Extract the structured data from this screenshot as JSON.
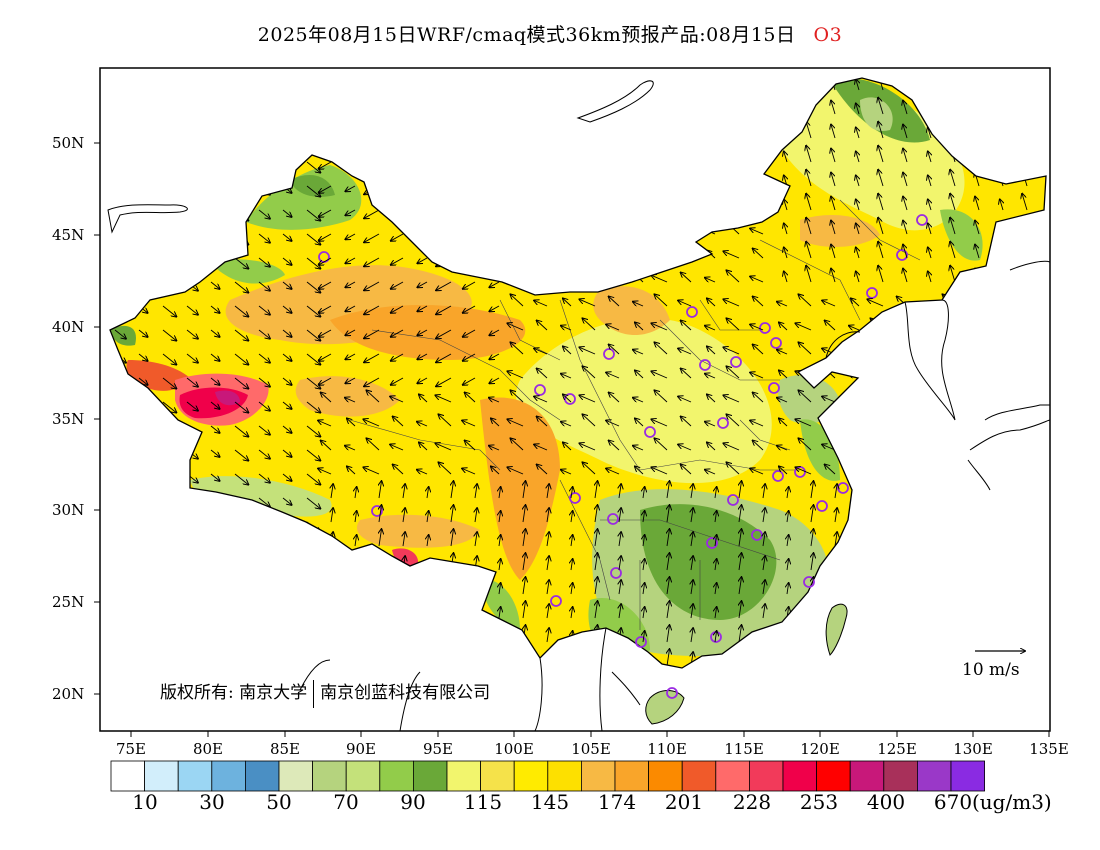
{
  "header": {
    "title": "2025年08月15日WRF/cmaq模式36km预报产品:08月15日",
    "species": "O3",
    "species_color": "#e02020"
  },
  "map": {
    "lat_labels": [
      "50N",
      "45N",
      "40N",
      "35N",
      "30N",
      "25N",
      "20N"
    ],
    "lon_labels": [
      "75E",
      "80E",
      "85E",
      "90E",
      "95E",
      "100E",
      "105E",
      "110E",
      "115E",
      "120E",
      "125E",
      "130E",
      "135E"
    ],
    "copyright_left": "版权所有: 南京大学",
    "copyright_right": "南京创蓝科技有限公司",
    "wind_reference_label": "10 m/s",
    "prevailing_concentration_color": "#ffe600"
  },
  "colorbar": {
    "unit": "(ug/m3)",
    "labels": [
      "10",
      "30",
      "50",
      "70",
      "90",
      "115",
      "145",
      "174",
      "201",
      "228",
      "253",
      "400",
      "670"
    ],
    "colors": [
      "#ffffff",
      "#d2eefb",
      "#9bd6f3",
      "#6db2de",
      "#4a8fc4",
      "#dde9b9",
      "#b5d37e",
      "#c4e17a",
      "#92cc4a",
      "#6aa838",
      "#f2f56d",
      "#f5e24a",
      "#ffeb00",
      "#fde000",
      "#f7b944",
      "#f9a52a",
      "#fb8a00",
      "#f05a2a",
      "#ff6a6a",
      "#f23a5a",
      "#f0004a",
      "#ff0000",
      "#c8187a",
      "#a8305a",
      "#9a38c8",
      "#8a2be2"
    ]
  }
}
